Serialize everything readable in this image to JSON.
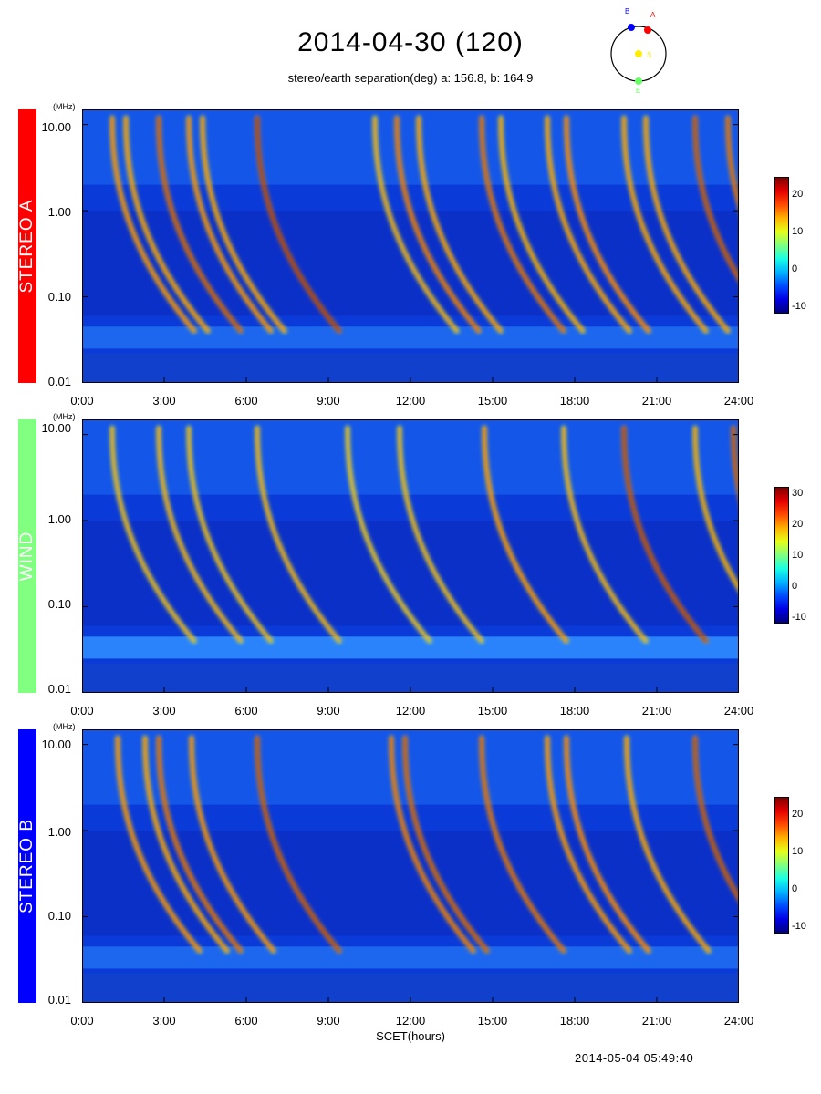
{
  "title": "2014-04-30 (120)",
  "subtitle": "stereo/earth separation(deg) a: 156.8, b: 164.9",
  "orbit_diagram": {
    "labels": {
      "a": "A",
      "b": "B",
      "sun": "S",
      "earth": "E"
    },
    "colors": {
      "a": "#ff0000",
      "b": "#0000ff",
      "sun": "#ffee00",
      "earth": "#66ff66"
    }
  },
  "units_label": "(MHz)",
  "x_label": "SCET(hours)",
  "footer_timestamp": "2014-05-04 05:49:40",
  "chart_data": [
    {
      "type": "heatmap",
      "name": "STEREO A",
      "band_color": "#ff0000",
      "x_range_hours": [
        0,
        24
      ],
      "y_range_mhz": [
        0.01,
        15
      ],
      "y_scale": "log",
      "y_ticks": [
        "10.00",
        "1.00",
        "0.10",
        "0.01"
      ],
      "x_ticks": [
        "0:00",
        "3:00",
        "6:00",
        "9:00",
        "12:00",
        "15:00",
        "18:00",
        "21:00",
        "24:00"
      ],
      "colorbar": {
        "ticks": [
          "20",
          "10",
          "0",
          "-10"
        ],
        "range": [
          -13,
          25
        ]
      },
      "bursts": [
        {
          "t": 1.1,
          "intensity": 12
        },
        {
          "t": 1.6,
          "intensity": 10
        },
        {
          "t": 2.8,
          "intensity": 20
        },
        {
          "t": 3.9,
          "intensity": 12
        },
        {
          "t": 4.4,
          "intensity": 10
        },
        {
          "t": 6.4,
          "intensity": 25
        },
        {
          "t": 10.7,
          "intensity": 6
        },
        {
          "t": 11.5,
          "intensity": 16
        },
        {
          "t": 12.3,
          "intensity": 10
        },
        {
          "t": 14.6,
          "intensity": 18
        },
        {
          "t": 15.3,
          "intensity": 8
        },
        {
          "t": 17.0,
          "intensity": 10
        },
        {
          "t": 17.7,
          "intensity": 14
        },
        {
          "t": 19.8,
          "intensity": 10
        },
        {
          "t": 20.6,
          "intensity": 10
        },
        {
          "t": 22.4,
          "intensity": 22
        },
        {
          "t": 23.6,
          "intensity": 18
        }
      ]
    },
    {
      "type": "heatmap",
      "name": "WIND",
      "band_color": "#80ff80",
      "x_range_hours": [
        0,
        24
      ],
      "y_range_mhz": [
        0.01,
        15
      ],
      "y_scale": "log",
      "y_ticks": [
        "10.00",
        "1.00",
        "0.10",
        "0.01"
      ],
      "x_ticks": [
        "0:00",
        "3:00",
        "6:00",
        "9:00",
        "12:00",
        "15:00",
        "18:00",
        "21:00",
        "24:00"
      ],
      "colorbar": {
        "ticks": [
          "30",
          "20",
          "10",
          "0",
          "-10"
        ],
        "range": [
          -12,
          32
        ]
      },
      "bursts": [
        {
          "t": 1.1,
          "intensity": 8
        },
        {
          "t": 2.8,
          "intensity": 10
        },
        {
          "t": 3.9,
          "intensity": 8
        },
        {
          "t": 6.4,
          "intensity": 10
        },
        {
          "t": 9.7,
          "intensity": 6
        },
        {
          "t": 11.6,
          "intensity": 8
        },
        {
          "t": 14.7,
          "intensity": 16
        },
        {
          "t": 17.6,
          "intensity": 10
        },
        {
          "t": 19.8,
          "intensity": 30
        },
        {
          "t": 22.4,
          "intensity": 12
        },
        {
          "t": 23.8,
          "intensity": 28
        }
      ]
    },
    {
      "type": "heatmap",
      "name": "STEREO B",
      "band_color": "#0000ff",
      "x_range_hours": [
        0,
        24
      ],
      "y_range_mhz": [
        0.01,
        15
      ],
      "y_scale": "log",
      "y_ticks": [
        "10.00",
        "1.00",
        "0.10",
        "0.01"
      ],
      "x_ticks": [
        "0:00",
        "3:00",
        "6:00",
        "9:00",
        "12:00",
        "15:00",
        "18:00",
        "21:00",
        "24:00"
      ],
      "colorbar": {
        "ticks": [
          "20",
          "10",
          "0",
          "-10"
        ],
        "range": [
          -13,
          25
        ]
      },
      "bursts": [
        {
          "t": 1.3,
          "intensity": 12
        },
        {
          "t": 2.3,
          "intensity": 10
        },
        {
          "t": 2.8,
          "intensity": 18
        },
        {
          "t": 4.0,
          "intensity": 12
        },
        {
          "t": 6.4,
          "intensity": 22
        },
        {
          "t": 11.3,
          "intensity": 16
        },
        {
          "t": 11.8,
          "intensity": 20
        },
        {
          "t": 14.6,
          "intensity": 18
        },
        {
          "t": 17.0,
          "intensity": 12
        },
        {
          "t": 17.7,
          "intensity": 14
        },
        {
          "t": 19.9,
          "intensity": 10
        },
        {
          "t": 22.4,
          "intensity": 22
        }
      ]
    }
  ]
}
